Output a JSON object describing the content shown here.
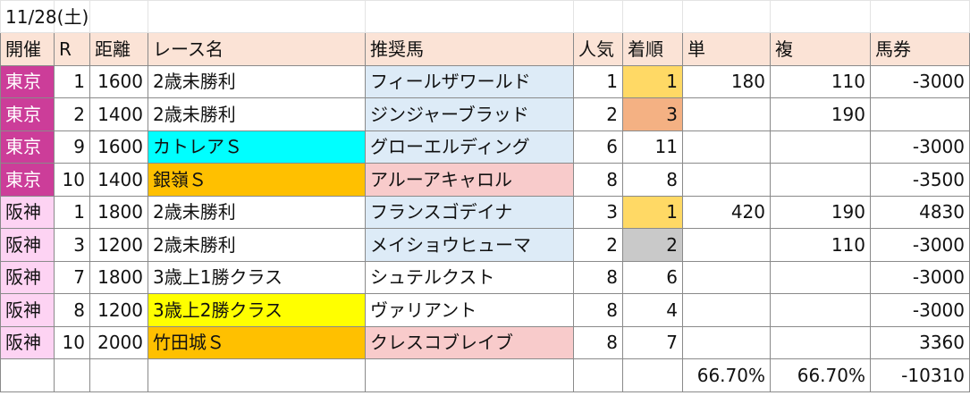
{
  "sheet": {
    "date": "11/28(土)",
    "headers": [
      "開催",
      "R",
      "距離",
      "レース名",
      "推奨馬",
      "人気",
      "着順",
      "単",
      "複",
      "馬券"
    ],
    "rows": [
      {
        "venue": "東京",
        "race": "1",
        "distance": "1600",
        "race_name": "2歳未勝利",
        "horse": "フィールザワールド",
        "popularity": "1",
        "finish": "1",
        "win": "180",
        "place": "110",
        "ticket": "-3000"
      },
      {
        "venue": "東京",
        "race": "2",
        "distance": "1400",
        "race_name": "2歳未勝利",
        "horse": "ジンジャーブラッド",
        "popularity": "2",
        "finish": "3",
        "win": "",
        "place": "190",
        "ticket": ""
      },
      {
        "venue": "東京",
        "race": "9",
        "distance": "1600",
        "race_name": "カトレアＳ",
        "horse": "グローエルディング",
        "popularity": "6",
        "finish": "11",
        "win": "",
        "place": "",
        "ticket": "-3000"
      },
      {
        "venue": "東京",
        "race": "10",
        "distance": "1400",
        "race_name": "銀嶺Ｓ",
        "horse": "アルーアキャロル",
        "popularity": "8",
        "finish": "8",
        "win": "",
        "place": "",
        "ticket": "-3500"
      },
      {
        "venue": "阪神",
        "race": "1",
        "distance": "1800",
        "race_name": "2歳未勝利",
        "horse": "フランスゴデイナ",
        "popularity": "3",
        "finish": "1",
        "win": "420",
        "place": "190",
        "ticket": "4830"
      },
      {
        "venue": "阪神",
        "race": "3",
        "distance": "1200",
        "race_name": "2歳未勝利",
        "horse": "メイショウヒューマ",
        "popularity": "2",
        "finish": "2",
        "win": "",
        "place": "110",
        "ticket": "-3000"
      },
      {
        "venue": "阪神",
        "race": "7",
        "distance": "1800",
        "race_name": "3歳上1勝クラス",
        "horse": "シュテルクスト",
        "popularity": "8",
        "finish": "6",
        "win": "",
        "place": "",
        "ticket": "-3000"
      },
      {
        "venue": "阪神",
        "race": "8",
        "distance": "1200",
        "race_name": "3歳上2勝クラス",
        "horse": "ヴァリアント",
        "popularity": "8",
        "finish": "4",
        "win": "",
        "place": "",
        "ticket": "-3000"
      },
      {
        "venue": "阪神",
        "race": "10",
        "distance": "2000",
        "race_name": "竹田城Ｓ",
        "horse": "クレスコブレイブ",
        "popularity": "8",
        "finish": "7",
        "win": "",
        "place": "",
        "ticket": "3360"
      }
    ],
    "totals": {
      "win_rate": "66.70%",
      "place_rate": "66.70%",
      "ticket_total": "-10310"
    }
  },
  "colors": {
    "header_fill": "#fbe3d6",
    "tokyo_fill": "#cc3d99",
    "hanshin_fill": "#fdd3f3",
    "horse_fill": "#ddebf7",
    "race_cyan": "#00ffff",
    "race_orange": "#ffc000",
    "race_yellow": "#ffff00",
    "horse_pink": "#f8cbcb",
    "finish_gold": "#ffd965",
    "finish_salmon": "#f4b183",
    "finish_gray": "#c9c9c9"
  }
}
